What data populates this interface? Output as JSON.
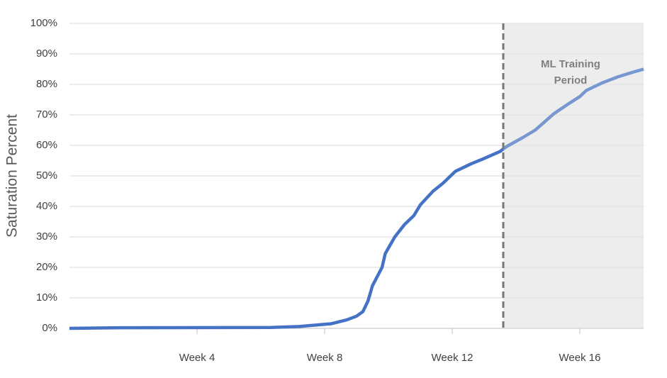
{
  "chart_data": {
    "type": "line",
    "y_label": "Saturation Percent",
    "x": [
      0,
      1.6,
      6.3,
      7.2,
      8.2,
      8.7,
      9.0,
      9.2,
      9.36,
      9.5,
      9.8,
      9.9,
      10.2,
      10.5,
      10.8,
      11.0,
      11.4,
      11.7,
      12.1,
      12.6,
      13.0,
      13.5,
      13.7,
      14.2,
      14.6,
      15.2,
      15.7,
      16.0,
      16.2,
      16.7,
      17.2,
      17.6,
      18.0
    ],
    "series": [
      {
        "name": "Saturation",
        "color": "#4472c4",
        "values": [
          0,
          0.2,
          0.3,
          0.6,
          1.5,
          2.8,
          4,
          5.5,
          9,
          14,
          20,
          24.5,
          30,
          34,
          37,
          40.5,
          45,
          47.5,
          51.5,
          54,
          55.7,
          58,
          59.6,
          62.5,
          65,
          70.5,
          74,
          76,
          78,
          80.5,
          82.5,
          83.8,
          85
        ]
      }
    ],
    "xlim": [
      0,
      18
    ],
    "xticks": [
      {
        "value": 4,
        "label": "Week 4"
      },
      {
        "value": 8,
        "label": "Week 8"
      },
      {
        "value": 12,
        "label": "Week 12"
      },
      {
        "value": 16,
        "label": "Week 16"
      }
    ],
    "ylim": [
      0,
      100
    ],
    "yticks": [
      {
        "value": 0,
        "label": "0%"
      },
      {
        "value": 10,
        "label": "10%"
      },
      {
        "value": 20,
        "label": "20%"
      },
      {
        "value": 30,
        "label": "30%"
      },
      {
        "value": 40,
        "label": "40%"
      },
      {
        "value": 50,
        "label": "50%"
      },
      {
        "value": 60,
        "label": "60%"
      },
      {
        "value": 70,
        "label": "70%"
      },
      {
        "value": 80,
        "label": "80%"
      },
      {
        "value": 90,
        "label": "90%"
      },
      {
        "value": 100,
        "label": "100%"
      }
    ],
    "grid": true,
    "shaded_region": {
      "x": [
        13.6,
        18
      ],
      "label": [
        "ML Training",
        "Period"
      ],
      "color": "#ededed"
    }
  }
}
